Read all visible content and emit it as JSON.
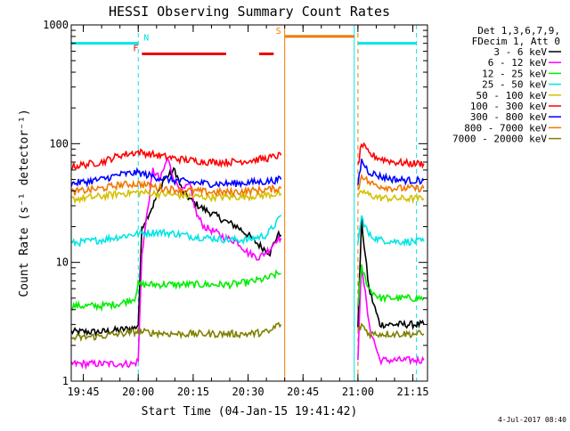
{
  "chart_data": {
    "type": "line",
    "title": "HESSI Observing Summary Count Rates",
    "xlabel": "Start Time (04-Jan-15 19:41:42)",
    "ylabel": "Count Rate (s⁻¹ detector⁻¹)",
    "y_scale": "log",
    "ylim": [
      1,
      1000
    ],
    "xlim": [
      "19:41:42",
      "21:19:00"
    ],
    "x_ticks": [
      "19:45",
      "20:00",
      "20:15",
      "20:30",
      "20:45",
      "21:00",
      "21:15"
    ],
    "y_ticks": [
      "1",
      "10",
      "100",
      "1000"
    ],
    "grid": false,
    "legend_position": "right",
    "legend_header": [
      "Det 1,3,6,7,9,",
      "FDecim 1, Att 0"
    ],
    "timestamp": "4-Jul-2017 08:40",
    "flags": [
      {
        "label": "N",
        "color": "#00e5e5",
        "level": 700,
        "segments": [
          [
            "19:41:42",
            "20:00"
          ],
          [
            "21:00",
            "21:16"
          ]
        ]
      },
      {
        "label": "F",
        "color": "#ee0000",
        "level": 570,
        "segments": [
          [
            "20:01",
            "20:24"
          ],
          [
            "20:33",
            "20:37"
          ]
        ]
      },
      {
        "label": "S",
        "color": "#f07800",
        "level": 800,
        "segments": [
          [
            "20:40",
            "20:59"
          ]
        ]
      }
    ],
    "vertical_markers": [
      {
        "time": "20:00",
        "color": "#00e5e5",
        "style": "dashed"
      },
      {
        "time": "20:40",
        "color": "#f07800",
        "style": "solid"
      },
      {
        "time": "20:59",
        "color": "#00e5e5",
        "style": "solid"
      },
      {
        "time": "21:00",
        "color": "#f07800",
        "style": "dashed"
      },
      {
        "time": "21:16",
        "color": "#00e5e5",
        "style": "dashed"
      }
    ],
    "series": [
      {
        "name": "3 - 6 keV",
        "color": "#000000",
        "segments": [
          {
            "x": [
              "19:41:42",
              "19:50",
              "19:55",
              "19:59",
              "20:00",
              "20:01",
              "20:04",
              "20:07",
              "20:10",
              "20:12",
              "20:15",
              "20:18",
              "20:21",
              "20:24",
              "20:27",
              "20:30",
              "20:33",
              "20:36",
              "20:38",
              "20:39"
            ],
            "y": [
              2.6,
              2.6,
              2.7,
              2.8,
              3.0,
              20,
              30,
              50,
              60,
              40,
              32,
              28,
              25,
              22,
              20,
              17,
              14,
              12,
              17,
              17
            ]
          },
          {
            "x": [
              "21:00",
              "21:01",
              "21:03",
              "21:06",
              "21:10",
              "21:14",
              "21:18"
            ],
            "y": [
              3,
              22,
              6,
              3,
              3,
              3,
              3
            ]
          }
        ]
      },
      {
        "name": "6 - 12 keV",
        "color": "#ff00ff",
        "segments": [
          {
            "x": [
              "19:41:42",
              "19:59",
              "20:00",
              "20:01",
              "20:04",
              "20:06",
              "20:08",
              "20:10",
              "20:12",
              "20:14",
              "20:16",
              "20:18",
              "20:21",
              "20:24",
              "20:27",
              "20:30",
              "20:33",
              "20:36",
              "20:38",
              "20:39"
            ],
            "y": [
              1.4,
              1.4,
              1.5,
              12,
              60,
              50,
              75,
              48,
              40,
              45,
              25,
              20,
              18,
              16,
              15,
              12,
              11,
              13,
              16,
              16
            ]
          },
          {
            "x": [
              "21:00",
              "21:01",
              "21:03",
              "21:06",
              "21:10",
              "21:14",
              "21:18"
            ],
            "y": [
              1.5,
              10,
              3,
              1.5,
              1.5,
              1.5,
              1.5
            ]
          }
        ]
      },
      {
        "name": "12 - 25 keV",
        "color": "#00ee00",
        "segments": [
          {
            "x": [
              "19:41:42",
              "19:50",
              "19:55",
              "19:59",
              "20:00",
              "20:05",
              "20:15",
              "20:25",
              "20:30",
              "20:35",
              "20:38",
              "20:39"
            ],
            "y": [
              4.3,
              4.3,
              4.5,
              5,
              6.5,
              6.5,
              6.5,
              6.5,
              6.8,
              7.3,
              8,
              8
            ]
          },
          {
            "x": [
              "21:00",
              "21:01",
              "21:03",
              "21:06",
              "21:10",
              "21:14",
              "21:18"
            ],
            "y": [
              4.5,
              9,
              6,
              5,
              5,
              5,
              5
            ]
          }
        ]
      },
      {
        "name": "25 - 50 keV",
        "color": "#00e5e5",
        "segments": [
          {
            "x": [
              "19:41:42",
              "19:50",
              "19:55",
              "20:00",
              "20:05",
              "20:10",
              "20:15",
              "20:20",
              "20:25",
              "20:30",
              "20:35",
              "20:38",
              "20:39"
            ],
            "y": [
              14.5,
              15.5,
              16.5,
              17.5,
              18,
              17.5,
              16.5,
              16,
              15.5,
              15.5,
              17,
              22,
              25
            ]
          },
          {
            "x": [
              "21:00",
              "21:01",
              "21:03",
              "21:06",
              "21:10",
              "21:14",
              "21:18"
            ],
            "y": [
              15,
              24,
              17,
              15.5,
              15,
              15,
              15
            ]
          }
        ]
      },
      {
        "name": "50 - 100 keV",
        "color": "#d4c000",
        "segments": [
          {
            "x": [
              "19:41:42",
              "19:50",
              "19:55",
              "20:00",
              "20:05",
              "20:10",
              "20:15",
              "20:20",
              "20:25",
              "20:30",
              "20:35",
              "20:39"
            ],
            "y": [
              34,
              36,
              38,
              39,
              38,
              37,
              36,
              35.5,
              35.5,
              36,
              37,
              38
            ]
          },
          {
            "x": [
              "21:00",
              "21:01",
              "21:03",
              "21:06",
              "21:10",
              "21:14",
              "21:18"
            ],
            "y": [
              34,
              40,
              37,
              35,
              34.5,
              34.5,
              34.5
            ]
          }
        ]
      },
      {
        "name": "100 - 300 keV",
        "color": "#ff0000",
        "segments": [
          {
            "x": [
              "19:41:42",
              "19:50",
              "19:55",
              "20:00",
              "20:05",
              "20:10",
              "20:15",
              "20:20",
              "20:25",
              "20:30",
              "20:35",
              "20:39"
            ],
            "y": [
              64,
              70,
              80,
              85,
              80,
              75,
              72,
              70,
              70,
              72,
              75,
              80
            ]
          },
          {
            "x": [
              "21:00",
              "21:01",
              "21:03",
              "21:06",
              "21:10",
              "21:14",
              "21:18"
            ],
            "y": [
              65,
              100,
              82,
              75,
              70,
              68,
              68
            ]
          }
        ]
      },
      {
        "name": "300 - 800 keV",
        "color": "#0000ff",
        "segments": [
          {
            "x": [
              "19:41:42",
              "19:50",
              "19:55",
              "20:00",
              "20:05",
              "20:10",
              "20:15",
              "20:20",
              "20:25",
              "20:30",
              "20:35",
              "20:39"
            ],
            "y": [
              46,
              50,
              55,
              57,
              52,
              49,
              47,
              46,
              46,
              47,
              48,
              50
            ]
          },
          {
            "x": [
              "21:00",
              "21:01",
              "21:03",
              "21:06",
              "21:10",
              "21:14",
              "21:18"
            ],
            "y": [
              46,
              72,
              58,
              53,
              50,
              49,
              49
            ]
          }
        ]
      },
      {
        "name": "800 - 7000 keV",
        "color": "#f07800",
        "segments": [
          {
            "x": [
              "19:41:42",
              "19:50",
              "19:55",
              "20:00",
              "20:05",
              "20:10",
              "20:15",
              "20:20",
              "20:25",
              "20:30",
              "20:35",
              "20:39"
            ],
            "y": [
              39,
              42,
              45,
              46,
              43,
              41,
              40,
              39,
              39,
              40,
              41,
              42
            ]
          },
          {
            "x": [
              "21:00",
              "21:01",
              "21:03",
              "21:06",
              "21:10",
              "21:14",
              "21:18"
            ],
            "y": [
              40,
              55,
              47,
              44,
              42,
              42,
              42
            ]
          }
        ]
      },
      {
        "name": "7000 - 20000 keV",
        "color": "#808000",
        "segments": [
          {
            "x": [
              "19:41:42",
              "19:50",
              "19:55",
              "19:59",
              "20:00",
              "20:10",
              "20:20",
              "20:30",
              "20:36",
              "20:38",
              "20:39"
            ],
            "y": [
              2.3,
              2.4,
              2.5,
              2.6,
              2.6,
              2.5,
              2.5,
              2.5,
              2.6,
              3.0,
              3.0
            ]
          },
          {
            "x": [
              "21:00",
              "21:01",
              "21:03",
              "21:06",
              "21:10",
              "21:14",
              "21:18"
            ],
            "y": [
              2.6,
              3,
              2.5,
              2.5,
              2.5,
              2.5,
              2.5
            ]
          }
        ]
      }
    ]
  }
}
